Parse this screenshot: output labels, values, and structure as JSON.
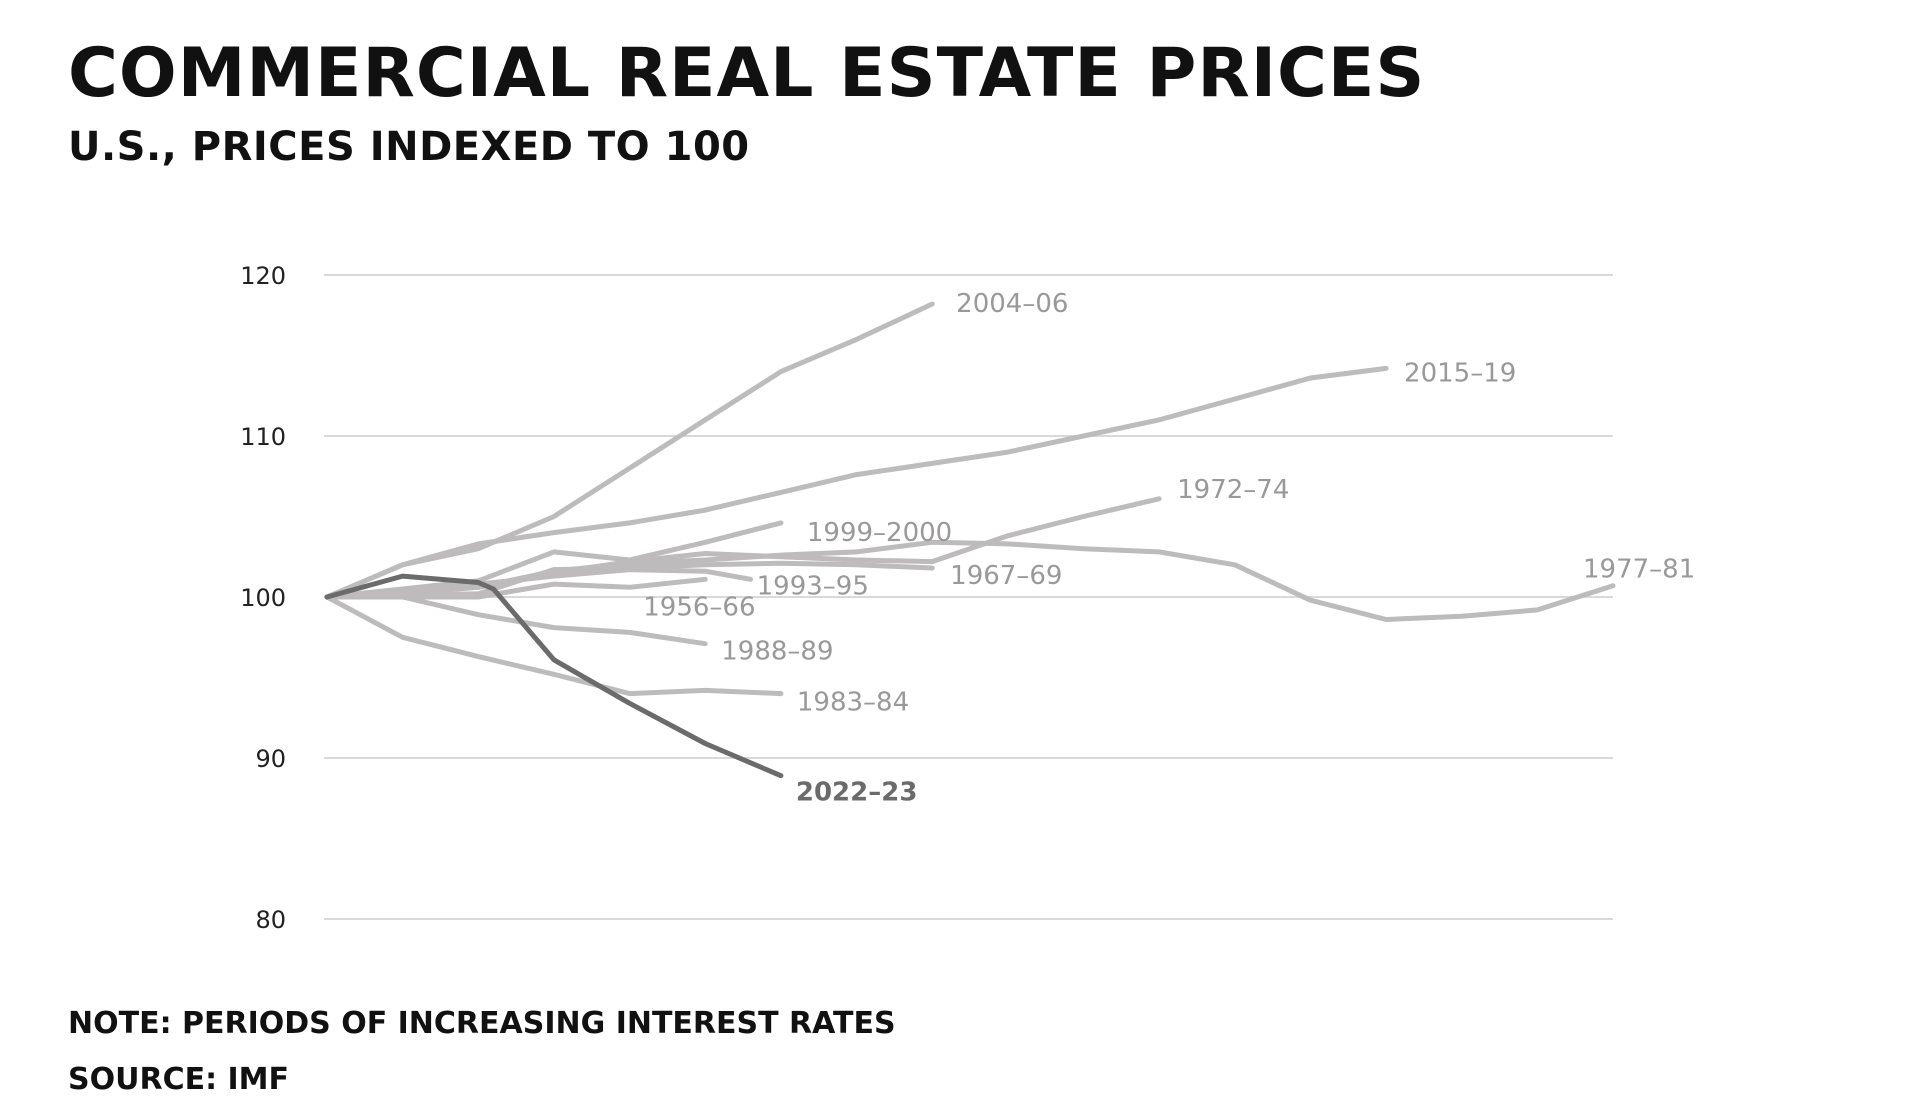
{
  "title": "COMMERCIAL REAL ESTATE PRICES",
  "subtitle": "U.S., PRICES INDEXED TO 100",
  "note": "NOTE: PERIODS OF INCREASING INTEREST RATES",
  "source": "SOURCE: IMF",
  "colors": {
    "highlight": "#6b6b6b",
    "muted_line": "#bdbbbb",
    "muted_label": "#9a9898",
    "grid": "#d9d9d9"
  },
  "chart_data": {
    "type": "line",
    "title": "COMMERCIAL REAL ESTATE PRICES",
    "subtitle": "U.S., PRICES INDEXED TO 100",
    "ylim": [
      80,
      120
    ],
    "yticks": [
      80,
      90,
      100,
      110,
      120
    ],
    "xlim": [
      0,
      17
    ],
    "grid": true,
    "series": [
      {
        "name": "2004–06",
        "highlight": false,
        "x": [
          0,
          1,
          2,
          3,
          4,
          5,
          6,
          7,
          8
        ],
        "y": [
          100,
          102,
          103,
          105,
          108,
          111,
          114,
          116,
          118.2
        ]
      },
      {
        "name": "2015–19",
        "highlight": false,
        "x": [
          0,
          1,
          2,
          3,
          4,
          5,
          6,
          7,
          8,
          9,
          10,
          11,
          12,
          13,
          14
        ],
        "y": [
          100,
          102,
          103.3,
          104,
          104.6,
          105.4,
          106.5,
          107.6,
          108.3,
          109,
          110,
          111,
          112.3,
          113.6,
          114.2
        ]
      },
      {
        "name": "1972–74",
        "highlight": false,
        "x": [
          0,
          1,
          2,
          3,
          4,
          5,
          6,
          7,
          8,
          9,
          10,
          11
        ],
        "y": [
          100,
          100.4,
          100.6,
          101.5,
          102.2,
          102.7,
          102.5,
          102.3,
          102.2,
          103.8,
          105,
          106.1
        ]
      },
      {
        "name": "1977–81",
        "highlight": false,
        "x": [
          0,
          1,
          2,
          3,
          4,
          5,
          6,
          7,
          8,
          9,
          10,
          11,
          12,
          13,
          14,
          15,
          16,
          17
        ],
        "y": [
          100,
          100.2,
          100.6,
          101.6,
          102.1,
          102.3,
          102.6,
          102.8,
          103.4,
          103.3,
          103,
          102.8,
          102,
          99.8,
          98.6,
          98.8,
          99.2,
          100.7
        ]
      },
      {
        "name": "1999–2000",
        "highlight": false,
        "x": [
          0,
          1,
          2,
          3,
          4,
          5,
          6
        ],
        "y": [
          100,
          100.5,
          101,
          102.8,
          102.3,
          103.4,
          104.6
        ]
      },
      {
        "name": "1967–69",
        "highlight": false,
        "x": [
          0,
          1,
          2,
          3,
          4,
          5,
          6,
          7,
          8
        ],
        "y": [
          100,
          100.1,
          100.2,
          101.7,
          101.8,
          102,
          102.1,
          102,
          101.8
        ]
      },
      {
        "name": "1993–95",
        "highlight": false,
        "x": [
          0,
          1,
          2,
          3,
          4,
          5,
          5.6
        ],
        "y": [
          100,
          100.4,
          100.8,
          101.3,
          101.7,
          101.6,
          101.1
        ]
      },
      {
        "name": "1956–66",
        "highlight": false,
        "x": [
          0,
          1,
          2,
          3,
          4,
          5
        ],
        "y": [
          100,
          100,
          100,
          100.8,
          100.6,
          101.1
        ]
      },
      {
        "name": "1988–89",
        "highlight": false,
        "x": [
          0,
          1,
          2,
          3,
          4,
          5
        ],
        "y": [
          100,
          100,
          98.9,
          98.1,
          97.8,
          97.1
        ]
      },
      {
        "name": "1983–84",
        "highlight": false,
        "x": [
          0,
          1,
          2,
          3,
          4,
          5,
          6
        ],
        "y": [
          100,
          97.5,
          96.3,
          95.2,
          94,
          94.2,
          94
        ]
      },
      {
        "name": "2022–23",
        "highlight": true,
        "x": [
          0,
          1,
          2,
          2.2,
          3,
          4,
          5,
          6
        ],
        "y": [
          100,
          101.3,
          100.9,
          100.5,
          96.1,
          93.4,
          90.9,
          88.9
        ]
      }
    ]
  }
}
